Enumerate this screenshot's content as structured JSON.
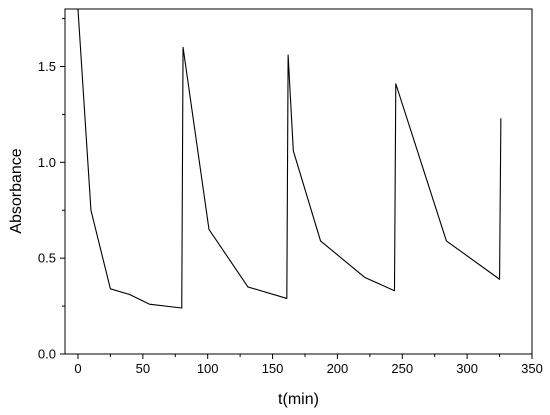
{
  "chart_data": {
    "type": "line",
    "title": "",
    "xlabel": "t(min)",
    "ylabel": "Absorbance",
    "xlim": [
      -10,
      350
    ],
    "ylim": [
      0.0,
      1.8
    ],
    "x_ticks": [
      0,
      50,
      100,
      150,
      200,
      250,
      300,
      350
    ],
    "y_ticks": [
      0.0,
      0.5,
      1.0,
      1.5
    ],
    "x_tick_labels": [
      "0",
      "50",
      "100",
      "150",
      "200",
      "250",
      "300",
      "350"
    ],
    "y_tick_labels": [
      "0.0",
      "0.5",
      "1.0",
      "1.5"
    ],
    "grid": false,
    "series": [
      {
        "color": "#000000",
        "x": [
          0,
          10,
          25,
          40,
          55,
          80,
          81,
          101,
          131,
          161,
          162,
          166,
          187,
          221,
          244,
          245,
          284,
          325,
          326
        ],
        "y": [
          1.8,
          0.75,
          0.34,
          0.31,
          0.26,
          0.24,
          1.6,
          0.65,
          0.35,
          0.29,
          1.56,
          1.06,
          0.59,
          0.4,
          0.33,
          1.41,
          0.59,
          0.39,
          1.23
        ]
      }
    ]
  }
}
